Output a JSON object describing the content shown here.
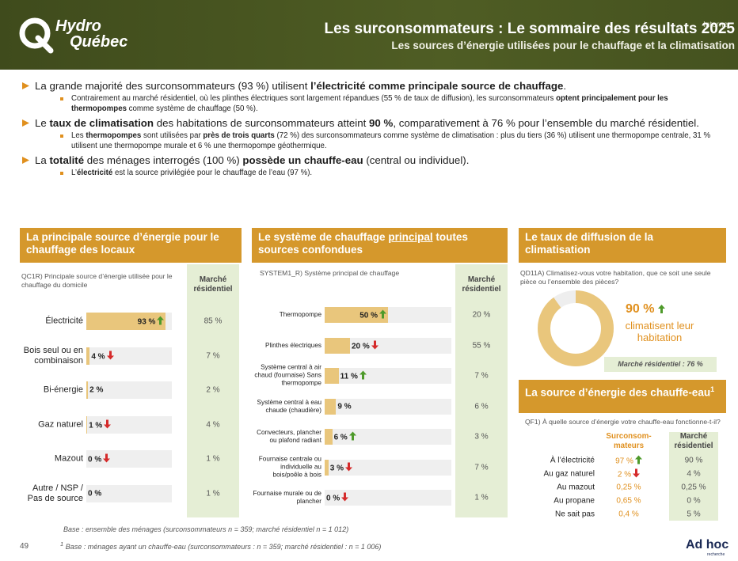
{
  "header": {
    "logo": [
      "Hydro",
      "Québec"
    ],
    "tag": "Interne",
    "title": "Les surconsommateurs : Le sommaire des résultats 2025",
    "subtitle": "Les sources d’énergie utilisées pour le chauffage et la climatisation"
  },
  "bullets": [
    {
      "level": 1,
      "segments": [
        {
          "text": "La grande majorité des surconsommateurs (93 %) utilisent "
        },
        {
          "text": "l’électricité comme principale source de chauffage",
          "bold": true
        },
        {
          "text": "."
        }
      ]
    },
    {
      "level": 2,
      "segments": [
        {
          "text": "Contrairement au marché résidentiel, où les plinthes électriques sont largement répandues (55 % de taux de diffusion), les surconsommateurs "
        },
        {
          "text": "optent principalement pour les thermopompes",
          "bold": true
        },
        {
          "text": " comme système de chauffage (50 %)."
        }
      ]
    },
    {
      "level": 1,
      "segments": [
        {
          "text": "Le "
        },
        {
          "text": "taux de climatisation",
          "bold": true
        },
        {
          "text": " des habitations de surconsommateurs atteint "
        },
        {
          "text": "90 %",
          "bold": true
        },
        {
          "text": ", comparativement à 76 % pour l’ensemble du marché résidentiel."
        }
      ]
    },
    {
      "level": 2,
      "segments": [
        {
          "text": "Les "
        },
        {
          "text": "thermopompes",
          "bold": true
        },
        {
          "text": " sont utilisées par "
        },
        {
          "text": "près de trois quarts",
          "bold": true
        },
        {
          "text": " (72 %) des surconsommateurs comme système de climatisation : plus du tiers (36 %) utilisent une thermopompe centrale, 31 % utilisent une thermopompe murale et 6 % une thermopompe géothermique."
        }
      ]
    },
    {
      "level": 1,
      "segments": [
        {
          "text": "La "
        },
        {
          "text": "totalité",
          "bold": true
        },
        {
          "text": " des ménages interrogés (100 %) "
        },
        {
          "text": "possède un chauffe-eau",
          "bold": true
        },
        {
          "text": " (central ou individuel)."
        }
      ]
    },
    {
      "level": 2,
      "segments": [
        {
          "text": "L’"
        },
        {
          "text": "électricité",
          "bold": true
        },
        {
          "text": " est la source privilégiée pour le chauffage de l’eau (97 %)."
        }
      ]
    }
  ],
  "panels": {
    "heating_source": {
      "title": "La principale source d’énergie pour le chauffage des locaux",
      "question": "QC1R) Principale source d’énergie utilisée pour le chauffage du domicile",
      "market_header": "Marché résidentiel",
      "xlim": [
        0,
        100
      ],
      "color": "#e9c67c",
      "categories": [
        "Électricité",
        "Bois seul ou en combinaison",
        "Bi-énergie",
        "Gaz naturel",
        "Mazout",
        "Autre / NSP / Pas de source"
      ],
      "values": [
        93,
        4,
        2,
        1,
        0,
        0
      ],
      "value_labels": [
        "93 %",
        "4 %",
        "2 %",
        "1 %",
        "0 %",
        "0 %"
      ],
      "trends": [
        "up",
        "down",
        null,
        "down",
        "down",
        null
      ],
      "market": [
        "85 %",
        "7 %",
        "2 %",
        "4 %",
        "1 %",
        "1 %"
      ]
    },
    "heating_system": {
      "title": [
        {
          "text": "Le système de chauffage "
        },
        {
          "text": "principal",
          "underline": true
        },
        {
          "text": " toutes sources confondues"
        }
      ],
      "question": "SYSTEM1_R) Système principal de chauffage",
      "market_header": "Marché résidentiel",
      "xlim": [
        0,
        100
      ],
      "color": "#e9c67c",
      "categories": [
        "Thermopompe",
        "Plinthes électriques",
        "Système central à air chaud (fournaise) Sans thermopompe",
        "Système central à eau chaude (chaudière)",
        "Convecteurs, plancher ou plafond radiant",
        "Fournaise centrale ou individuelle au bois/poêle à bois",
        "Fournaise murale ou de plancher"
      ],
      "values": [
        50,
        20,
        11,
        9,
        6,
        3,
        0
      ],
      "value_labels": [
        "50 %",
        "20 %",
        "11 %",
        "9 %",
        "6 %",
        "3 %",
        "0 %"
      ],
      "trends": [
        "up",
        "down",
        "up",
        null,
        "up",
        "down",
        "down"
      ],
      "market": [
        "20 %",
        "55 %",
        "7 %",
        "6 %",
        "3 %",
        "7 %",
        "1 %"
      ]
    },
    "cooling": {
      "title": "Le taux de diffusion de la climatisation",
      "question": "QD11A) Climatisez-vous votre habitation, que ce soit une seule pièce ou l’ensemble des pièces?",
      "scale": [
        0,
        100
      ],
      "value": 90,
      "value_label": "90 %",
      "trend": "up",
      "color": "#e9c67c",
      "caption": "climatisent leur habitation",
      "market": "Marché résidentiel : 76 %"
    },
    "water_heater": {
      "title": "La source d’énergie des chauffe-eau",
      "title_note": "1",
      "question": "QF1) À quelle source d’énergie votre chauffe-eau fonctionne-t-il?",
      "columns": [
        "Surconsom-mateurs",
        "Marché résidentiel"
      ],
      "rows": [
        {
          "label": "À l’électricité",
          "value": "97 %",
          "trend": "up",
          "market": "90 %"
        },
        {
          "label": "Au gaz naturel",
          "value": "2 %",
          "trend": "down",
          "market": "4 %"
        },
        {
          "label": "Au mazout",
          "value": "0,25 %",
          "trend": null,
          "market": "0,25 %"
        },
        {
          "label": "Au propane",
          "value": "0,65 %",
          "trend": null,
          "market": "0 %"
        },
        {
          "label": "Ne sait pas",
          "value": "0,4 %",
          "trend": null,
          "market": "5 %"
        }
      ]
    }
  },
  "footer": {
    "notes": [
      {
        "mark": null,
        "text": "Base : ensemble des ménages (surconsommateurs n = 359; marché résidentiel n = 1 012)"
      },
      {
        "mark": "1",
        "text": "Base : ménages ayant un chauffe-eau (surconsommateurs : n = 359; marché résidentiel : n = 1 006)"
      }
    ],
    "page": "49",
    "brand": [
      "Ad hoc",
      "recherche"
    ]
  }
}
